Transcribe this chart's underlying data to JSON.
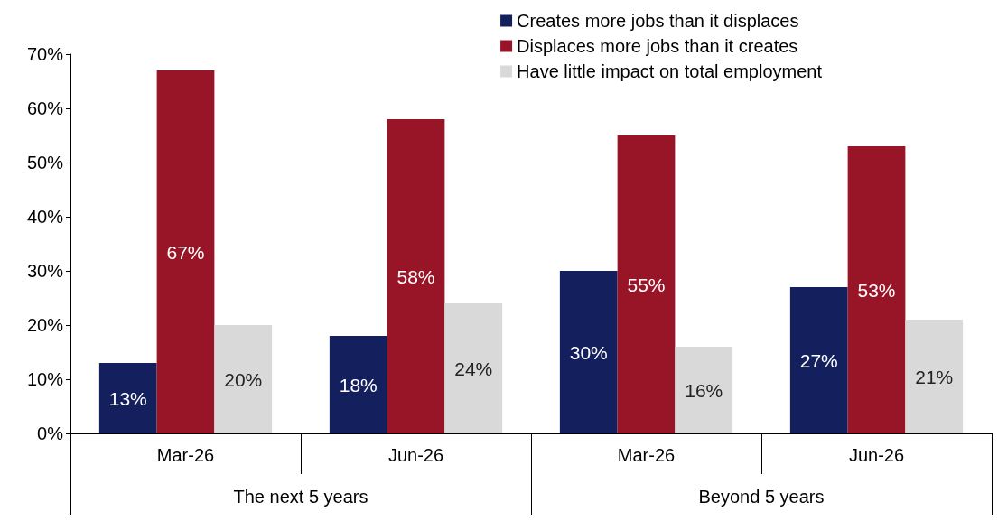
{
  "chart_data": {
    "type": "bar",
    "categories": [
      "Mar-26",
      "Jun-26",
      "Mar-26",
      "Jun-26"
    ],
    "annotations": [
      "The next 5 years",
      "Beyond 5 years"
    ],
    "series": [
      {
        "name": "Creates more jobs than it displaces",
        "color": "#14205e",
        "values": [
          13,
          18,
          30,
          27
        ],
        "value_labels": [
          "13%",
          "18%",
          "30%",
          "27%"
        ]
      },
      {
        "name": "Displaces more jobs than it creates",
        "color": "#981528",
        "values": [
          67,
          58,
          55,
          53
        ],
        "value_labels": [
          "67%",
          "58%",
          "55%",
          "53%"
        ]
      },
      {
        "name": "Have little impact on total employment",
        "color": "#d9d9d9",
        "values": [
          20,
          24,
          16,
          21
        ],
        "value_labels": [
          "20%",
          "24%",
          "16%",
          "21%"
        ]
      }
    ],
    "ylim": [
      0,
      70
    ],
    "yticks": [
      {
        "value": 0,
        "label": "0%"
      },
      {
        "value": 10,
        "label": "10%"
      },
      {
        "value": 20,
        "label": "20%"
      },
      {
        "value": 30,
        "label": "30%"
      },
      {
        "value": 40,
        "label": "40%"
      },
      {
        "value": 50,
        "label": "50%"
      },
      {
        "value": 60,
        "label": "60%"
      },
      {
        "value": 70,
        "label": "70%"
      }
    ],
    "grid": false,
    "legend": "top right"
  }
}
